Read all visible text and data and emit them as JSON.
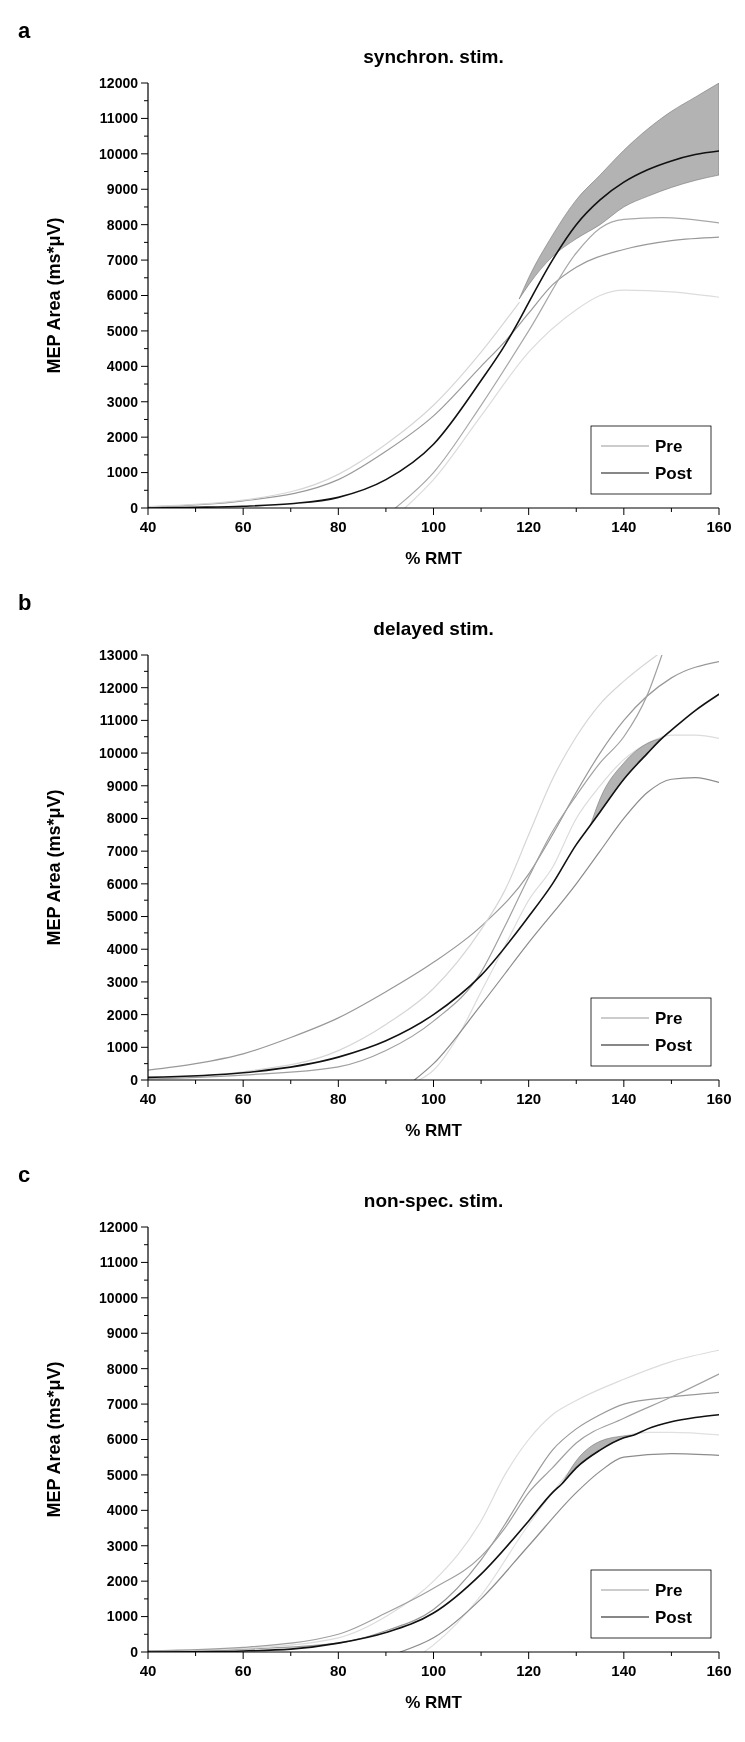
{
  "chart_data": [
    {
      "type": "line",
      "title": "synchron. stim.",
      "xlabel": "% RMT",
      "ylabel": "MEP Area (ms*μV)",
      "annotations": [
        "a"
      ],
      "xlim": [
        40,
        160
      ],
      "ylim": [
        0,
        12000
      ],
      "xticks": [
        40,
        {
          "value": 50,
          "label": null
        },
        60,
        {
          "value": 70,
          "label": null
        },
        80,
        {
          "value": 90,
          "label": null
        },
        100,
        {
          "value": 110,
          "label": null
        },
        120,
        {
          "value": 130,
          "label": null
        },
        140,
        {
          "value": 150,
          "label": null
        },
        160
      ],
      "yticks": [
        0,
        {
          "value": 500,
          "label": null
        },
        1000,
        {
          "value": 1500,
          "label": null
        },
        2000,
        {
          "value": 2500,
          "label": null
        },
        3000,
        {
          "value": 3500,
          "label": null
        },
        4000,
        {
          "value": 4500,
          "label": null
        },
        5000,
        {
          "value": 5500,
          "label": null
        },
        6000,
        {
          "value": 6500,
          "label": null
        },
        7000,
        {
          "value": 7500,
          "label": null
        },
        8000,
        {
          "value": 8500,
          "label": null
        },
        9000,
        {
          "value": 9500,
          "label": null
        },
        10000,
        {
          "value": 10500,
          "label": null
        },
        11000,
        {
          "value": 11500,
          "label": null
        },
        12000
      ],
      "legend": "bottom right",
      "grid": false,
      "line_style": "solid",
      "series": [
        {
          "name": "Pre",
          "color": "#999999",
          "x": [
            40,
            60,
            80,
            90,
            100,
            110,
            115,
            120,
            125,
            130,
            140,
            150,
            160
          ],
          "values": [
            30,
            200,
            800,
            1600,
            2600,
            4000,
            4700,
            5500,
            6300,
            6800,
            7300,
            7550,
            7650
          ]
        },
        {
          "color": "#d6d6d6",
          "x": [
            40,
            60,
            80,
            90,
            100,
            110,
            118
          ],
          "values": [
            40,
            220,
            950,
            1800,
            2900,
            4400,
            5800
          ]
        },
        {
          "color": "#a8a8a8",
          "x": [
            92,
            100,
            110,
            120,
            130,
            135,
            140,
            148,
            160
          ],
          "values": [
            0,
            1000,
            2900,
            5000,
            7200,
            7900,
            8150,
            8200,
            8050
          ]
        },
        {
          "color": "#dcdcdc",
          "x": [
            94,
            100,
            110,
            120,
            130,
            135,
            140,
            150,
            160
          ],
          "values": [
            0,
            800,
            2600,
            4400,
            5600,
            6000,
            6150,
            6100,
            5950
          ]
        },
        {
          "name": "Post",
          "color": "#111111",
          "x": [
            40,
            50,
            60,
            70,
            80,
            90,
            100,
            110,
            115,
            118,
            120,
            125,
            130,
            135,
            140,
            145,
            150,
            155,
            160
          ],
          "values": [
            0,
            20,
            50,
            120,
            300,
            800,
            1800,
            3600,
            4600,
            5300,
            5800,
            7000,
            8000,
            8700,
            9200,
            9550,
            9800,
            9980,
            10080
          ],
          "lower": [
            null,
            null,
            null,
            null,
            null,
            null,
            null,
            null,
            null,
            5900,
            6300,
            7100,
            7600,
            8000,
            8500,
            8800,
            9050,
            9250,
            9400
          ],
          "upper": [
            null,
            null,
            null,
            null,
            null,
            null,
            null,
            null,
            null,
            5900,
            6500,
            7700,
            8700,
            9400,
            10100,
            10700,
            11200,
            11600,
            12000
          ]
        }
      ]
    },
    {
      "type": "line",
      "title": "delayed stim.",
      "xlabel": "% RMT",
      "ylabel": "MEP Area (ms*μV)",
      "annotations": [
        "b"
      ],
      "xlim": [
        40,
        160
      ],
      "ylim": [
        0,
        13000
      ],
      "xticks": [
        40,
        {
          "value": 50,
          "label": null
        },
        60,
        {
          "value": 70,
          "label": null
        },
        80,
        {
          "value": 90,
          "label": null
        },
        100,
        {
          "value": 110,
          "label": null
        },
        120,
        {
          "value": 130,
          "label": null
        },
        140,
        {
          "value": 150,
          "label": null
        },
        160
      ],
      "yticks": [
        0,
        {
          "value": 500,
          "label": null
        },
        1000,
        {
          "value": 1500,
          "label": null
        },
        2000,
        {
          "value": 2500,
          "label": null
        },
        3000,
        {
          "value": 3500,
          "label": null
        },
        4000,
        {
          "value": 4500,
          "label": null
        },
        5000,
        {
          "value": 5500,
          "label": null
        },
        6000,
        {
          "value": 6500,
          "label": null
        },
        7000,
        {
          "value": 7500,
          "label": null
        },
        8000,
        {
          "value": 8500,
          "label": null
        },
        9000,
        {
          "value": 9500,
          "label": null
        },
        10000,
        {
          "value": 10500,
          "label": null
        },
        11000,
        {
          "value": 11500,
          "label": null
        },
        12000,
        {
          "value": 12500,
          "label": null
        },
        13000
      ],
      "legend": "bottom right",
      "grid": false,
      "line_style": "solid",
      "series": [
        {
          "name": "Pre",
          "color": "#999999",
          "x": [
            40,
            50,
            60,
            70,
            80,
            90,
            100,
            110,
            120,
            125,
            130,
            135,
            140,
            150,
            160
          ],
          "values": [
            300,
            500,
            800,
            1300,
            1900,
            2700,
            3600,
            4700,
            6300,
            7500,
            8800,
            10000,
            11000,
            12300,
            12800
          ]
        },
        {
          "color": "#d6d6d6",
          "x": [
            40,
            60,
            80,
            90,
            100,
            110,
            115,
            120,
            125,
            130,
            135,
            140,
            147
          ],
          "values": [
            50,
            250,
            900,
            1700,
            2800,
            4600,
            5800,
            7500,
            9200,
            10500,
            11500,
            12200,
            13000
          ]
        },
        {
          "color": "#a0a0a0",
          "x": [
            40,
            60,
            80,
            90,
            100,
            110,
            115,
            120,
            125,
            130,
            135,
            140,
            145,
            148
          ],
          "values": [
            30,
            150,
            400,
            900,
            1800,
            3300,
            4700,
            6200,
            7600,
            8700,
            9700,
            10500,
            11800,
            13000
          ]
        },
        {
          "color": "#dcdcdc",
          "x": [
            97,
            100,
            105,
            110,
            115,
            120,
            125,
            130,
            135,
            140,
            145,
            150,
            155,
            160
          ],
          "values": [
            0,
            300,
            1300,
            2700,
            4100,
            5500,
            6500,
            8000,
            9000,
            9800,
            10300,
            10550,
            10550,
            10450
          ]
        },
        {
          "color": "#8c8c8c",
          "x": [
            96,
            100,
            110,
            120,
            130,
            135,
            140,
            145,
            150,
            155,
            160
          ],
          "values": [
            0,
            500,
            2300,
            4200,
            6000,
            7000,
            8000,
            8800,
            9200,
            9250,
            9100
          ]
        },
        {
          "name": "Post",
          "color": "#111111",
          "x": [
            40,
            60,
            80,
            90,
            100,
            110,
            120,
            125,
            130,
            133,
            135,
            140,
            145,
            148,
            150,
            155,
            160
          ],
          "values": [
            80,
            220,
            700,
            1200,
            2000,
            3200,
            5000,
            6000,
            7200,
            7800,
            8200,
            9200,
            10000,
            10450,
            10700,
            11300,
            11800
          ],
          "lower": [
            null,
            null,
            null,
            null,
            null,
            null,
            null,
            null,
            null,
            7800,
            8200,
            9200,
            10000,
            10450,
            null,
            null,
            null
          ],
          "upper": [
            null,
            null,
            null,
            null,
            null,
            null,
            null,
            null,
            null,
            7800,
            8600,
            9700,
            10300,
            10450,
            null,
            null,
            null
          ]
        }
      ]
    },
    {
      "type": "line",
      "title": "non-spec. stim.",
      "xlabel": "% RMT",
      "ylabel": "MEP Area (ms*μV)",
      "annotations": [
        "c"
      ],
      "xlim": [
        40,
        160
      ],
      "ylim": [
        0,
        12000
      ],
      "xticks": [
        40,
        {
          "value": 50,
          "label": null
        },
        60,
        {
          "value": 70,
          "label": null
        },
        80,
        {
          "value": 90,
          "label": null
        },
        100,
        {
          "value": 110,
          "label": null
        },
        120,
        {
          "value": 130,
          "label": null
        },
        140,
        {
          "value": 150,
          "label": null
        },
        160
      ],
      "yticks": [
        0,
        {
          "value": 500,
          "label": null
        },
        1000,
        {
          "value": 1500,
          "label": null
        },
        2000,
        {
          "value": 2500,
          "label": null
        },
        3000,
        {
          "value": 3500,
          "label": null
        },
        4000,
        {
          "value": 4500,
          "label": null
        },
        5000,
        {
          "value": 5500,
          "label": null
        },
        6000,
        {
          "value": 6500,
          "label": null
        },
        7000,
        {
          "value": 7500,
          "label": null
        },
        8000,
        {
          "value": 8500,
          "label": null
        },
        9000,
        {
          "value": 9500,
          "label": null
        },
        10000,
        {
          "value": 10500,
          "label": null
        },
        11000,
        {
          "value": 11500,
          "label": null
        },
        12000
      ],
      "legend": "bottom right",
      "grid": false,
      "line_style": "solid",
      "series": [
        {
          "name": "Pre",
          "color": "#999999",
          "x": [
            40,
            60,
            80,
            90,
            100,
            110,
            115,
            120,
            125,
            130,
            135,
            140,
            150,
            160
          ],
          "values": [
            20,
            80,
            250,
            600,
            1200,
            2600,
            3600,
            4700,
            5700,
            6300,
            6700,
            7000,
            7200,
            7330
          ]
        },
        {
          "color": "#dcdcdc",
          "x": [
            40,
            60,
            80,
            90,
            100,
            110,
            115,
            120,
            125,
            130,
            140,
            150,
            160
          ],
          "values": [
            20,
            100,
            400,
            1000,
            2000,
            3700,
            5000,
            6000,
            6700,
            7100,
            7700,
            8200,
            8520
          ]
        },
        {
          "color": "#a0a0a0",
          "x": [
            40,
            60,
            80,
            90,
            100,
            110,
            115,
            120,
            125,
            130,
            140,
            150,
            160
          ],
          "values": [
            30,
            130,
            500,
            1100,
            1800,
            2700,
            3500,
            4500,
            5200,
            5900,
            6600,
            7200,
            7850
          ]
        },
        {
          "color": "#e0e0e0",
          "x": [
            98,
            100,
            110,
            120,
            125,
            130,
            135,
            140,
            145,
            150,
            160
          ],
          "values": [
            0,
            200,
            1600,
            3600,
            4500,
            5300,
            5800,
            6100,
            6200,
            6200,
            6130
          ]
        },
        {
          "color": "#8c8c8c",
          "x": [
            93,
            100,
            110,
            120,
            130,
            135,
            140,
            150,
            160
          ],
          "values": [
            0,
            400,
            1500,
            3000,
            4500,
            5100,
            5500,
            5600,
            5550
          ]
        },
        {
          "name": "Post",
          "color": "#111111",
          "x": [
            40,
            60,
            70,
            80,
            90,
            100,
            110,
            120,
            125,
            127,
            130,
            135,
            140,
            142,
            145,
            150,
            155,
            160
          ],
          "values": [
            0,
            30,
            80,
            250,
            550,
            1100,
            2200,
            3700,
            4500,
            4750,
            5200,
            5700,
            6050,
            6120,
            6300,
            6500,
            6620,
            6700
          ],
          "lower": [
            null,
            null,
            null,
            null,
            null,
            null,
            null,
            null,
            null,
            4750,
            5200,
            5700,
            6050,
            6120,
            null,
            null,
            null,
            null
          ],
          "upper": [
            null,
            null,
            null,
            null,
            null,
            null,
            null,
            null,
            null,
            4750,
            5400,
            5950,
            6100,
            6120,
            null,
            null,
            null,
            null
          ]
        }
      ]
    }
  ]
}
